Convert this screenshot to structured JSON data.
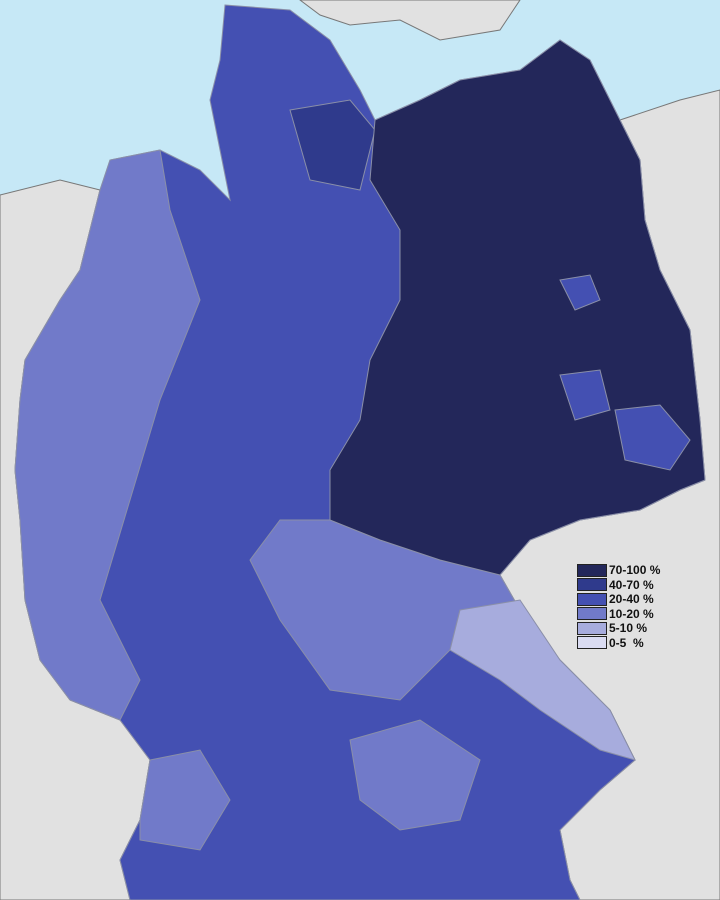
{
  "map": {
    "sea_color": "#c6e8f6",
    "neighbor_land_color": "#e1e1e1",
    "border_color": "#8a8fa8"
  },
  "legend": {
    "items": [
      {
        "label": "70-100 %",
        "color": "#23275a"
      },
      {
        "label": "40-70 %",
        "color": "#2f3a8c"
      },
      {
        "label": "20-40 %",
        "color": "#4450b2"
      },
      {
        "label": "10-20 %",
        "color": "#717ac9"
      },
      {
        "label": "5-10 %",
        "color": "#a7acdd"
      },
      {
        "label": "0-5  %",
        "color": "#dadcf2"
      }
    ]
  }
}
